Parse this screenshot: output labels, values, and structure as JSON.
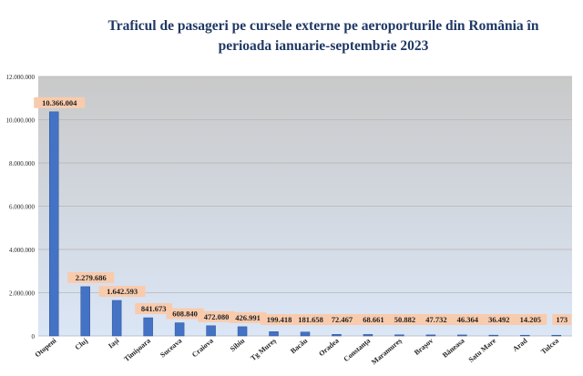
{
  "chart_title": {
    "line1": "Traficul de pasageri pe cursele externe pe aeroporturile din România în",
    "line2": "perioada ianuarie-septembrie 2023"
  },
  "colors": {
    "bar": "#4472c4",
    "bar_edge": "#2f5597",
    "plot_top": "#c9c9c9",
    "plot_bottom": "#dbe6f6",
    "data_label_bg": "#f8cbad",
    "text": "#1f1f1f"
  },
  "chart_data": {
    "type": "bar",
    "title": "Traficul de pasageri pe cursele externe pe aeroporturile din România în perioada ianuarie-septembrie 2023",
    "xlabel": "",
    "ylabel": "",
    "ylim": [
      0,
      12000000
    ],
    "yticks": [
      0,
      2000000,
      4000000,
      6000000,
      8000000,
      10000000,
      12000000
    ],
    "ytick_labels": [
      "0",
      "2.000.000",
      "4.000.000",
      "6.000.000",
      "8.000.000",
      "10.000.000",
      "12.000.000"
    ],
    "grid": true,
    "legend": "none",
    "categories": [
      "Otopeni",
      "Cluj",
      "Iași",
      "Timișoara",
      "Suceava",
      "Craiova",
      "Sibiu",
      "Tg Mureș",
      "Bacău",
      "Oradea",
      "Constanța",
      "Maramureș",
      "Brașov",
      "Băneasa",
      "Satu Mare",
      "Arad",
      "Tulcea"
    ],
    "values": [
      10366004,
      2279686,
      1642593,
      841673,
      608840,
      472080,
      426991,
      199418,
      181658,
      72467,
      68661,
      50882,
      47732,
      46364,
      36492,
      14205,
      173
    ],
    "value_labels": [
      "10.366.004",
      "2.279.686",
      "1.642.593",
      "841.673",
      "608.840",
      "472.080",
      "426.991",
      "199.418",
      "181.658",
      "72.467",
      "68.661",
      "50.882",
      "47.732",
      "46.364",
      "36.492",
      "14.205",
      "173"
    ]
  }
}
